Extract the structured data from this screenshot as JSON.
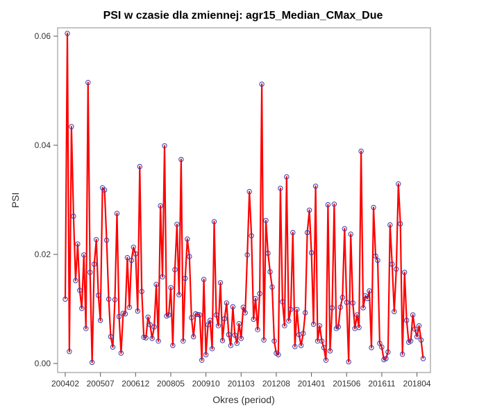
{
  "chart_data": {
    "type": "line",
    "title": "PSI w czasie dla zmiennej: agr15_Median_CMax_Due",
    "xlabel": "Okres (period)",
    "ylabel": "PSI",
    "x_tick_labels": [
      "200402",
      "200507",
      "200612",
      "200805",
      "200910",
      "201103",
      "201208",
      "201401",
      "201506",
      "201611",
      "201804"
    ],
    "y_ticks": [
      0.0,
      0.02,
      0.04,
      0.06
    ],
    "y_tick_labels": [
      "0.00",
      "0.02",
      "0.04",
      "0.06"
    ],
    "ylim": [
      -0.0015,
      0.0625
    ],
    "x_start_period": "200401",
    "x_end_period": "201806",
    "values": [
      0.0118,
      0.0605,
      0.0022,
      0.0434,
      0.027,
      0.0152,
      0.0219,
      0.0134,
      0.0101,
      0.0199,
      0.0064,
      0.0515,
      0.0167,
      0.0002,
      0.0182,
      0.0227,
      0.0125,
      0.0079,
      0.0322,
      0.0318,
      0.0226,
      0.0118,
      0.0049,
      0.003,
      0.0117,
      0.0275,
      0.0086,
      0.0019,
      0.0092,
      0.0091,
      0.0194,
      0.0103,
      0.0189,
      0.0213,
      0.0201,
      0.0096,
      0.0361,
      0.0132,
      0.0048,
      0.0047,
      0.0085,
      0.0071,
      0.0046,
      0.0067,
      0.0145,
      0.0041,
      0.0289,
      0.0159,
      0.0399,
      0.0087,
      0.0089,
      0.0139,
      0.0033,
      0.0172,
      0.0255,
      0.0126,
      0.0374,
      0.0041,
      0.0156,
      0.0228,
      0.0196,
      0.0084,
      0.0049,
      0.0091,
      0.009,
      0.0089,
      0.0006,
      0.0154,
      0.0016,
      0.0071,
      0.0079,
      0.0027,
      0.026,
      0.0089,
      0.0069,
      0.0148,
      0.0042,
      0.0082,
      0.0111,
      0.0053,
      0.0033,
      0.0104,
      0.0052,
      0.0037,
      0.0073,
      0.0046,
      0.0103,
      0.0093,
      0.0199,
      0.0315,
      0.0234,
      0.0081,
      0.0119,
      0.0062,
      0.0128,
      0.0512,
      0.0043,
      0.0262,
      0.0202,
      0.0168,
      0.014,
      0.0041,
      0.0019,
      0.0016,
      0.0321,
      0.0113,
      0.0069,
      0.0342,
      0.0078,
      0.0099,
      0.024,
      0.0031,
      0.0099,
      0.0053,
      0.0033,
      0.0055,
      0.0093,
      0.024,
      0.0281,
      0.0203,
      0.0072,
      0.0325,
      0.0041,
      0.0069,
      0.0041,
      0.0029,
      0.0006,
      0.0291,
      0.0023,
      0.0102,
      0.0292,
      0.0064,
      0.0067,
      0.0103,
      0.0121,
      0.0247,
      0.0112,
      0.0003,
      0.0237,
      0.0111,
      0.0064,
      0.0089,
      0.0066,
      0.0389,
      0.0102,
      0.0124,
      0.0119,
      0.0133,
      0.0029,
      0.0286,
      0.0197,
      0.0189,
      0.0037,
      0.003,
      0.0007,
      0.0009,
      0.0021,
      0.0254,
      0.0182,
      0.0095,
      0.0173,
      0.0329,
      0.0256,
      0.0017,
      0.0167,
      0.0079,
      0.0039,
      0.0041,
      0.0089,
      0.0063,
      0.0049,
      0.0069,
      0.0043,
      0.0009
    ],
    "line_color": "#ff0000",
    "marker_color": "#3a3aa8",
    "grid": false,
    "legend": "none"
  }
}
